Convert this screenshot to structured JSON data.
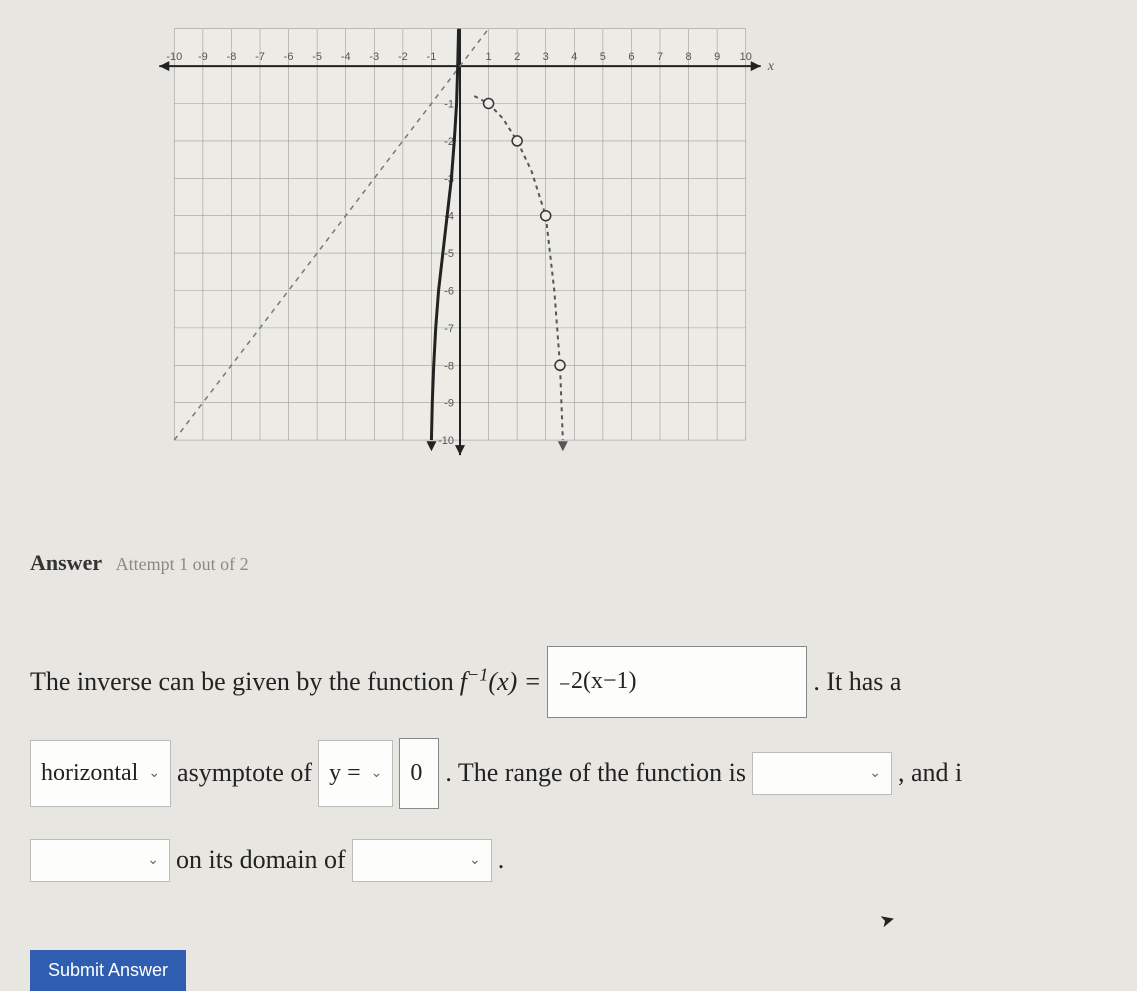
{
  "graph": {
    "type": "coordinate-plane-with-curves",
    "xlim": [
      -10,
      10
    ],
    "ylim": [
      -10,
      1
    ],
    "xtick_step": 1,
    "ytick_step": 1,
    "x_axis_label": "x",
    "background_color": "#ecebe6",
    "grid_color": "#9e9e9e",
    "axis_color": "#222222",
    "tick_label_color": "#555555",
    "tick_fontsize": 11,
    "xtick_labels": [
      "-10",
      "-9",
      "-8",
      "-7",
      "-6",
      "-5",
      "-4",
      "-3",
      "-2",
      "-1",
      "",
      "1",
      "2",
      "3",
      "4",
      "5",
      "6",
      "7",
      "8",
      "9",
      "10"
    ],
    "ytick_labels_negative": [
      "-1",
      "-2",
      "-3",
      "-4",
      "-5",
      "-6",
      "-7",
      "-8",
      "-9",
      "-10"
    ],
    "asymptote_line": {
      "description": "diagonal dashed line y = x",
      "color": "#777777",
      "dash": "5,5",
      "width": 1.5,
      "endpoints": [
        [
          -10,
          -10
        ],
        [
          1,
          1
        ]
      ]
    },
    "curve_f": {
      "description": "original function — vertical-looking log-type curve left of y-axis going down",
      "color": "#222222",
      "width": 3,
      "points": [
        [
          -0.05,
          1
        ],
        [
          -0.08,
          0
        ],
        [
          -0.12,
          -1
        ],
        [
          -0.2,
          -2
        ],
        [
          -0.3,
          -3
        ],
        [
          -0.45,
          -4
        ],
        [
          -0.6,
          -5
        ],
        [
          -0.75,
          -6
        ],
        [
          -0.85,
          -7
        ],
        [
          -0.92,
          -8
        ],
        [
          -0.97,
          -9
        ],
        [
          -1.0,
          -10
        ]
      ],
      "arrow_end": [
        -1.0,
        -10.3
      ]
    },
    "curve_finv": {
      "description": "inverse (dashed) curve with open-circle markers, approaching y=0 then curving down",
      "color": "#555555",
      "width": 2,
      "dash": "4,4",
      "open_circle_points": [
        [
          1,
          -1
        ],
        [
          2,
          -2
        ],
        [
          3,
          -4
        ],
        [
          3.5,
          -8
        ]
      ],
      "marker_radius": 5,
      "marker_fill": "#ecebe6",
      "marker_stroke": "#333333",
      "path_points": [
        [
          0.5,
          -0.8
        ],
        [
          1,
          -1
        ],
        [
          1.5,
          -1.4
        ],
        [
          2,
          -2
        ],
        [
          2.5,
          -2.8
        ],
        [
          3,
          -4
        ],
        [
          3.3,
          -6
        ],
        [
          3.5,
          -8
        ],
        [
          3.6,
          -10
        ]
      ],
      "arrow_end": [
        3.6,
        -10.3
      ]
    }
  },
  "answer_header": {
    "label": "Answer",
    "attempt": "Attempt 1 out of 2"
  },
  "sentence": {
    "part1": "The inverse can be given by the function ",
    "fx_label": "f",
    "fx_sup": "−1",
    "fx_paren": "(x) = ",
    "input_expression": "₋2(x−1)",
    "part2": ". It has a",
    "asymptote_type": "horizontal",
    "asymptote_word": "asymptote of",
    "y_equals": "y =",
    "asymptote_value": "0",
    "part3": ". The range of the function is",
    "range_value": "",
    "part4": ", and i",
    "domain_prefix_value": "",
    "part5": "on its domain of",
    "domain_value": "",
    "period": "."
  },
  "submit_label": "Submit Answer",
  "colors": {
    "page_bg": "#e8e6e0",
    "input_border": "#888888",
    "dropdown_border": "#bbbbbb",
    "submit_bg": "#2f5db0",
    "submit_fg": "#ffffff",
    "text": "#222222",
    "muted": "#888888"
  }
}
